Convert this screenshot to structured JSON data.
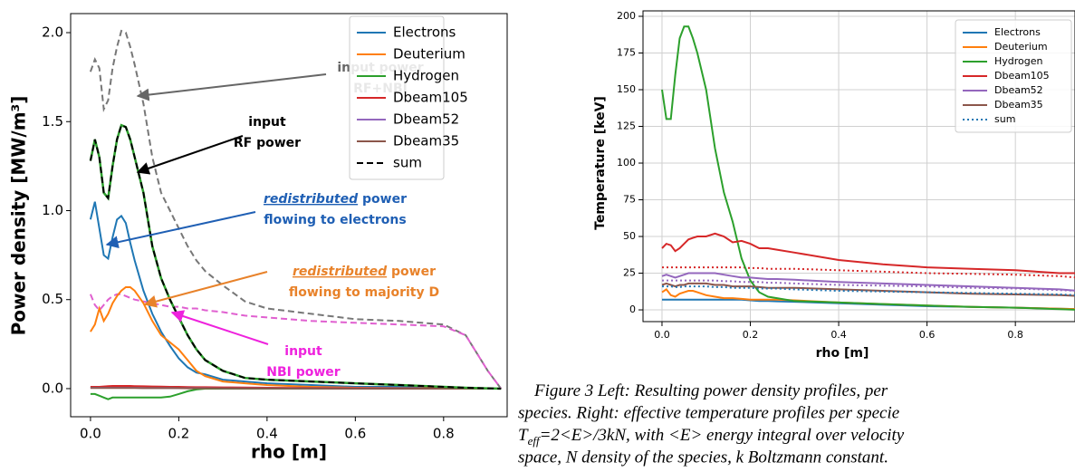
{
  "chart_data": [
    {
      "type": "line",
      "x": [
        0,
        0.01,
        0.02,
        0.03,
        0.04,
        0.05,
        0.06,
        0.07,
        0.08,
        0.09,
        0.1,
        0.12,
        0.14,
        0.16,
        0.18,
        0.2,
        0.22,
        0.24,
        0.26,
        0.3,
        0.35,
        0.4,
        0.5,
        0.6,
        0.7,
        0.8,
        0.85,
        0.9,
        0.93
      ],
      "x_label": "rho [m]",
      "y_label": "Power density [MW/m³]",
      "xlim": [
        -0.045,
        0.944
      ],
      "ylim": [
        -0.158,
        2.107
      ],
      "xticks": [
        {
          "value": 0,
          "label": "0.0"
        },
        0.2,
        0.4,
        0.6,
        0.8
      ],
      "yticks": [
        {
          "value": 0,
          "label": "0.0"
        },
        0.5,
        {
          "value": 1,
          "label": "1.0"
        },
        1.5,
        {
          "value": 2,
          "label": "2.0"
        }
      ],
      "grid": false,
      "legend": "upper right",
      "series": [
        {
          "name": "Electrons",
          "color": "#1f77b4",
          "values": [
            0.95,
            1.05,
            0.9,
            0.75,
            0.73,
            0.85,
            0.95,
            0.97,
            0.93,
            0.82,
            0.72,
            0.55,
            0.42,
            0.32,
            0.24,
            0.17,
            0.12,
            0.09,
            0.08,
            0.05,
            0.04,
            0.03,
            0.02,
            0.01,
            0.01,
            0.005,
            0.003,
            0.002,
            0
          ]
        },
        {
          "name": "Deuterium",
          "color": "#ff7f0e",
          "values": [
            0.32,
            0.36,
            0.45,
            0.38,
            0.42,
            0.48,
            0.52,
            0.55,
            0.57,
            0.57,
            0.55,
            0.48,
            0.38,
            0.3,
            0.26,
            0.22,
            0.16,
            0.1,
            0.07,
            0.04,
            0.03,
            0.02,
            0.01,
            0.005,
            0.003,
            0.002,
            0.001,
            0.001,
            0
          ]
        },
        {
          "name": "Hydrogen",
          "color": "#2ca02c",
          "values": [
            -0.03,
            -0.03,
            -0.04,
            -0.05,
            -0.06,
            -0.05,
            -0.05,
            -0.05,
            -0.05,
            -0.05,
            -0.05,
            -0.05,
            -0.05,
            -0.05,
            -0.045,
            -0.03,
            -0.015,
            -0.005,
            0,
            0,
            0,
            0,
            0,
            0,
            0,
            0,
            0,
            0,
            0
          ]
        },
        {
          "name": "Dbeam105",
          "color": "#d62728",
          "values": [
            0.01,
            0.01,
            0.01,
            0.012,
            0.014,
            0.015,
            0.015,
            0.015,
            0.015,
            0.015,
            0.014,
            0.013,
            0.012,
            0.011,
            0.01,
            0.01,
            0.009,
            0.008,
            0.008,
            0.007,
            0.006,
            0.005,
            0.004,
            0.003,
            0.002,
            0.001,
            0.001,
            0,
            0
          ]
        },
        {
          "name": "Dbeam52",
          "color": "#9467bd",
          "values": [
            0.005,
            0.005,
            0.005,
            0.005,
            0.005,
            0.005,
            0.005,
            0.005,
            0.005,
            0.005,
            0.005,
            0.004,
            0.004,
            0.004,
            0.004,
            0.003,
            0.003,
            0.003,
            0.003,
            0.002,
            0.002,
            0.002,
            0.001,
            0.001,
            0.001,
            0,
            0,
            0,
            0
          ]
        },
        {
          "name": "Dbeam35",
          "color": "#8c564b",
          "values": [
            0.004,
            0.004,
            0.004,
            0.004,
            0.004,
            0.004,
            0.004,
            0.004,
            0.004,
            0.004,
            0.004,
            0.003,
            0.003,
            0.003,
            0.003,
            0.003,
            0.002,
            0.002,
            0.002,
            0.002,
            0.001,
            0.001,
            0.001,
            0,
            0,
            0,
            0,
            0,
            0
          ]
        },
        {
          "name": "sum",
          "color": "#000000",
          "dash": "dashed",
          "underlay_color": "#2ca02c",
          "values": [
            1.28,
            1.4,
            1.3,
            1.1,
            1.07,
            1.25,
            1.4,
            1.48,
            1.47,
            1.4,
            1.3,
            1.1,
            0.8,
            0.62,
            0.5,
            0.4,
            0.3,
            0.22,
            0.16,
            0.1,
            0.06,
            0.05,
            0.04,
            0.03,
            0.02,
            0.01,
            0.005,
            0.002,
            0
          ]
        }
      ],
      "reference_curves": [
        {
          "color": "#777777",
          "dash": "dashed",
          "values": [
            1.78,
            1.85,
            1.8,
            1.57,
            1.62,
            1.8,
            1.92,
            2.01,
            2.0,
            1.92,
            1.82,
            1.6,
            1.3,
            1.1,
            1.0,
            0.9,
            0.8,
            0.72,
            0.66,
            0.58,
            0.49,
            0.45,
            0.42,
            0.39,
            0.38,
            0.36,
            0.3,
            0.1,
            0
          ]
        },
        {
          "color": "#e060d0",
          "dash": "dashed",
          "values": [
            0.53,
            0.47,
            0.44,
            0.47,
            0.5,
            0.52,
            0.53,
            0.53,
            0.52,
            0.51,
            0.5,
            0.49,
            0.48,
            0.47,
            0.46,
            0.46,
            0.45,
            0.45,
            0.44,
            0.43,
            0.41,
            0.4,
            0.38,
            0.37,
            0.36,
            0.35,
            0.3,
            0.1,
            0
          ]
        }
      ],
      "annotations": [
        {
          "lines": [
            "input power",
            "RF+NBI"
          ],
          "color": "#666666"
        },
        {
          "lines": [
            "input",
            "RF power"
          ],
          "color": "#000000"
        },
        {
          "emphasis": "redistributed",
          "lines": [
            " power",
            "flowing to electrons"
          ],
          "color": "#1f5fb4"
        },
        {
          "emphasis": "redistributed",
          "lines": [
            " power",
            "flowing to majority D"
          ],
          "color": "#e8822a"
        },
        {
          "lines": [
            "input",
            "NBI power"
          ],
          "color": "#ee22dd"
        }
      ]
    },
    {
      "type": "line",
      "x": [
        0,
        0.01,
        0.02,
        0.03,
        0.04,
        0.05,
        0.06,
        0.07,
        0.08,
        0.1,
        0.12,
        0.14,
        0.16,
        0.18,
        0.2,
        0.22,
        0.24,
        0.26,
        0.3,
        0.4,
        0.5,
        0.6,
        0.7,
        0.8,
        0.9,
        0.94
      ],
      "x_label": "rho [m]",
      "y_label": "Temperature [keV]",
      "xlim": [
        -0.043,
        0.935
      ],
      "ylim": [
        -8,
        203.7
      ],
      "xticks": [
        {
          "value": 0,
          "label": "0.0"
        },
        0.2,
        0.4,
        0.6,
        0.8
      ],
      "yticks": [
        0,
        25,
        50,
        75,
        100,
        125,
        150,
        175,
        200
      ],
      "grid": true,
      "legend": "upper right",
      "series": [
        {
          "name": "Electrons",
          "color": "#1f77b4",
          "values": [
            7,
            7,
            7,
            7,
            7,
            7,
            7,
            7,
            7,
            7,
            7,
            7,
            7,
            7,
            6.5,
            6,
            6,
            5.8,
            5.5,
            4.5,
            3.5,
            2.5,
            2,
            1.5,
            0.8,
            0.5
          ]
        },
        {
          "name": "Deuterium",
          "color": "#ff7f0e",
          "values": [
            12,
            14,
            10,
            9,
            11,
            12,
            13,
            13,
            12,
            10,
            9,
            8,
            8,
            7.5,
            7,
            7,
            7,
            7,
            6.5,
            5,
            4,
            3,
            2,
            1.5,
            0.8,
            0.5
          ]
        },
        {
          "name": "Hydrogen",
          "color": "#2ca02c",
          "values": [
            150,
            130,
            130,
            160,
            185,
            193,
            193,
            185,
            175,
            150,
            110,
            80,
            60,
            35,
            20,
            12,
            9,
            8,
            6,
            5,
            4,
            3,
            2,
            1.5,
            0.5,
            0
          ]
        },
        {
          "name": "Dbeam105",
          "color": "#d62728",
          "values": [
            42,
            45,
            44,
            40,
            42,
            45,
            48,
            49,
            50,
            50,
            52,
            50,
            46,
            47,
            45,
            42,
            42,
            41,
            39,
            34,
            31,
            29,
            28,
            27,
            25,
            25
          ]
        },
        {
          "name": "Dbeam52",
          "color": "#9467bd",
          "values": [
            23,
            24,
            23,
            22,
            23,
            24,
            25,
            25,
            25,
            25,
            25,
            24,
            23,
            22,
            22,
            21.5,
            21,
            21,
            20.5,
            19,
            18,
            17,
            16,
            15,
            14,
            13
          ]
        },
        {
          "name": "Dbeam35",
          "color": "#8c564b",
          "values": [
            17,
            18,
            17,
            16,
            17,
            17,
            18,
            18,
            18,
            18,
            17,
            17,
            16,
            16,
            16,
            15.5,
            15,
            15,
            15,
            14,
            13,
            12,
            11,
            10.5,
            10,
            9.5
          ]
        },
        {
          "name": "sum",
          "color": "#1f77b4",
          "dash": "dotted",
          "values": [
            16,
            16,
            16,
            15.5,
            15.5,
            16,
            16,
            16,
            16,
            16,
            15.5,
            15.5,
            15,
            15,
            15,
            14.5,
            14.5,
            14.5,
            14,
            13,
            12.5,
            12,
            11.5,
            11,
            10.5,
            10
          ]
        }
      ],
      "reference_curves": [
        {
          "color": "#d62728",
          "dash": "dotted",
          "values": [
            29,
            29,
            29,
            29,
            29,
            29,
            29,
            29,
            29,
            29,
            29,
            29,
            29,
            29,
            28.5,
            28.5,
            28,
            28,
            28,
            27,
            26,
            25,
            24.5,
            24,
            23,
            22
          ]
        },
        {
          "color": "#9467bd",
          "dash": "dotted",
          "values": [
            20,
            20,
            20,
            20,
            20,
            20,
            20,
            20,
            20,
            20,
            20,
            19.5,
            19.5,
            19,
            19,
            19,
            18.5,
            18.5,
            18,
            17,
            16.5,
            16,
            15,
            14.5,
            13.5,
            13
          ]
        }
      ]
    }
  ],
  "caption": {
    "lines": [
      "Figure 3 Left: Resulting power density profiles, per",
      "species. Right: effective temperature profiles per specie",
      null,
      "space, N density of the species, k Boltzmann constant."
    ],
    "formula": {
      "symbol": "T",
      "subscript": "eff",
      "rest": "=2<E>/3kN, with <E> energy integral over velocity"
    }
  }
}
